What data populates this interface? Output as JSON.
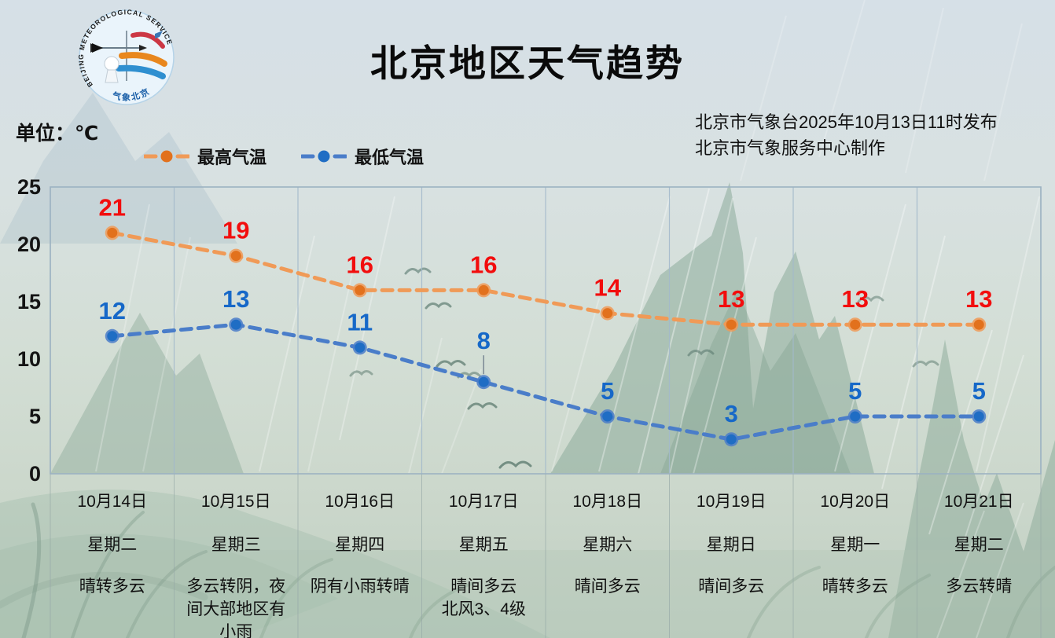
{
  "header": {
    "title": "北京地区天气趋势",
    "issued_by": "北京市气象台2025年10月13日11时发布",
    "produced_by": "北京市气象服务中心制作"
  },
  "logo": {
    "arc_text": "BEIJING  METEOROLOGICAL  SERVICE",
    "bottom_text": "气象北京"
  },
  "chart_data": {
    "type": "line",
    "title": "北京地区天气趋势",
    "unit_label": "单位：℃",
    "ylim": [
      0,
      25
    ],
    "yticks": [
      0,
      5,
      10,
      15,
      20,
      25
    ],
    "grid": "vertical-only",
    "legend_position": "top-left",
    "categories": [
      {
        "date": "10月14日",
        "weekday": "星期二",
        "weather": "晴转多云"
      },
      {
        "date": "10月15日",
        "weekday": "星期三",
        "weather": "多云转阴，夜间大部地区有小雨"
      },
      {
        "date": "10月16日",
        "weekday": "星期四",
        "weather": "阴有小雨转晴"
      },
      {
        "date": "10月17日",
        "weekday": "星期五",
        "weather": "晴间多云\n北风3、4级"
      },
      {
        "date": "10月18日",
        "weekday": "星期六",
        "weather": "晴间多云"
      },
      {
        "date": "10月19日",
        "weekday": "星期日",
        "weather": "晴间多云"
      },
      {
        "date": "10月20日",
        "weekday": "星期一",
        "weather": "晴转多云"
      },
      {
        "date": "10月21日",
        "weekday": "星期二",
        "weather": "多云转晴"
      }
    ],
    "series": [
      {
        "name": "最高气温",
        "values": [
          21,
          19,
          16,
          16,
          14,
          13,
          13,
          13
        ],
        "line_color": "#f09a57",
        "marker_color": "#e2711d",
        "label_color": "#f20d0d"
      },
      {
        "name": "最低气温",
        "values": [
          12,
          13,
          11,
          8,
          5,
          3,
          5,
          5
        ],
        "line_color": "#4a7dc9",
        "marker_color": "#1f6dc4",
        "label_color": "#1668c8",
        "label_leader_index": 3
      }
    ]
  }
}
